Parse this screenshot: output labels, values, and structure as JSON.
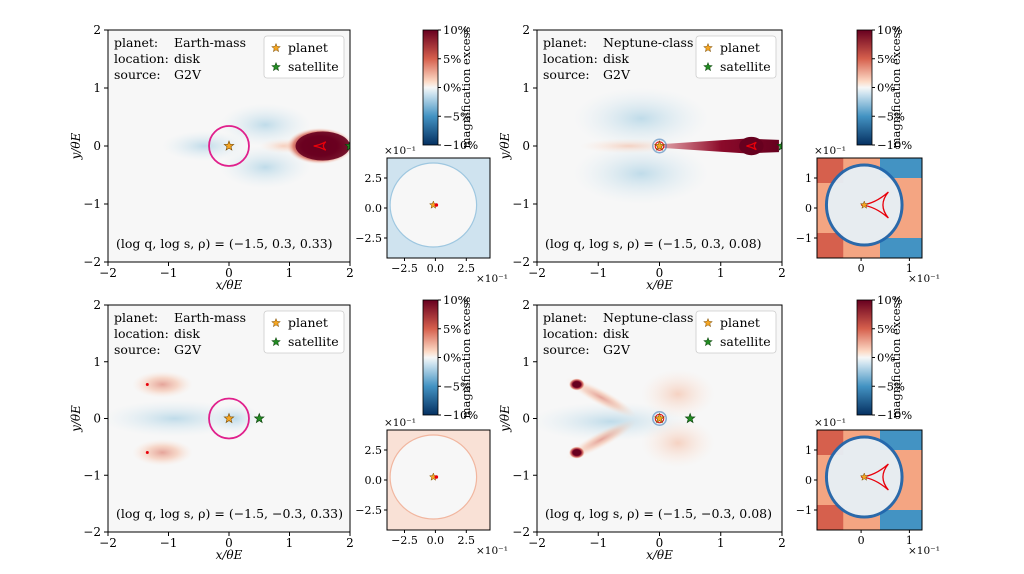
{
  "colors": {
    "excess_high": "#67001f",
    "excess_low": "#053061",
    "neutral": "#f7f7f7",
    "caustic": "#e8000b",
    "circle": "#e0208c",
    "planet_star": "#f5a623",
    "satellite_star": "#228b22"
  },
  "chart_data": [
    {
      "type": "heatmap",
      "panel": "top-left",
      "info": {
        "planet_key": "planet:",
        "planet_val": "Earth-mass",
        "location_key": "location:",
        "location_val": "disk",
        "source_key": "source:",
        "source_val": "G2V"
      },
      "legend": {
        "planet": "planet",
        "satellite": "satellite"
      },
      "param_text": "(log q, log s, ρ) = (−1.5, 0.3, 0.33)",
      "xlabel": "x/θE",
      "ylabel": "y/θE",
      "xlim": [
        -2,
        2
      ],
      "ylim": [
        -2,
        2
      ],
      "xticks": [
        "−2",
        "−1",
        "0",
        "1",
        "2"
      ],
      "yticks": [
        "2",
        "1",
        "0",
        "−1",
        "−2"
      ],
      "planet_xy": [
        0,
        0
      ],
      "satellite_xy": [
        2.0,
        0
      ],
      "excess_regions": [
        {
          "x": 1.5,
          "y": 0,
          "sign": 1,
          "strength": 1.0,
          "shape": "lobe"
        }
      ],
      "magenta_circle": {
        "x": 0,
        "y": 0,
        "r": 0.33
      },
      "colorbar": {
        "label": "magnification excess",
        "ticks": [
          "10%",
          "5%",
          "0%",
          "−5%",
          "−10%"
        ],
        "range": [
          -10,
          10
        ]
      },
      "inset": {
        "scale_label": "×10⁻¹",
        "ticks": [
          "2.5",
          "0.0",
          "−2.5"
        ],
        "xticks": [
          "−2.5",
          "0.0",
          "2.5"
        ],
        "range": [
          -0.4,
          0.4
        ]
      }
    },
    {
      "type": "heatmap",
      "panel": "top-right",
      "info": {
        "planet_key": "planet:",
        "planet_val": "Neptune-class",
        "location_key": "location:",
        "location_val": "disk",
        "source_key": "source:",
        "source_val": "G2V"
      },
      "legend": {
        "planet": "planet",
        "satellite": "satellite"
      },
      "param_text": "(log q, log s, ρ) = (−1.5, 0.3, 0.08)",
      "xlabel": "x/θE",
      "ylabel": "y/θE",
      "xlim": [
        -2,
        2
      ],
      "ylim": [
        -2,
        2
      ],
      "xticks": [
        "−2",
        "−1",
        "0",
        "1",
        "2"
      ],
      "yticks": [
        "2",
        "1",
        "0",
        "−1",
        "−2"
      ],
      "planet_xy": [
        0,
        0
      ],
      "satellite_xy": [
        2.0,
        0
      ],
      "excess_regions": [
        {
          "x": 1.5,
          "y": 0,
          "sign": 1,
          "strength": 1.0,
          "shape": "band"
        }
      ],
      "colorbar": {
        "label": "magnification excess",
        "ticks": [
          "10%",
          "5%",
          "0%",
          "−5%",
          "−10%"
        ],
        "range": [
          -10,
          10
        ]
      },
      "inset": {
        "scale_label": "×10⁻¹",
        "ticks": [
          "1",
          "0",
          "−1"
        ],
        "xticks": [
          "0",
          "1"
        ],
        "range": [
          -1,
          1.2
        ]
      }
    },
    {
      "type": "heatmap",
      "panel": "bottom-left",
      "info": {
        "planet_key": "planet:",
        "planet_val": "Earth-mass",
        "location_key": "location:",
        "location_val": "disk",
        "source_key": "source:",
        "source_val": "G2V"
      },
      "legend": {
        "planet": "planet",
        "satellite": "satellite"
      },
      "param_text": "(log q, log s, ρ) = (−1.5, −0.3, 0.33)",
      "xlabel": "x/θE",
      "ylabel": "y/θE",
      "xlim": [
        -2,
        2
      ],
      "ylim": [
        -2,
        2
      ],
      "xticks": [
        "−2",
        "−1",
        "0",
        "1",
        "2"
      ],
      "yticks": [
        "2",
        "1",
        "0",
        "−1",
        "−2"
      ],
      "planet_xy": [
        0,
        0
      ],
      "satellite_xy": [
        0.5,
        0
      ],
      "excess_regions": [
        {
          "x": -1.35,
          "y": 0.6,
          "sign": 1,
          "strength": 0.4,
          "shape": "blob"
        },
        {
          "x": -1.35,
          "y": -0.6,
          "sign": 1,
          "strength": 0.4,
          "shape": "blob"
        }
      ],
      "magenta_circle": {
        "x": 0,
        "y": 0,
        "r": 0.33
      },
      "colorbar": {
        "label": "magnification excess",
        "ticks": [
          "10%",
          "5%",
          "0%",
          "−5%",
          "−10%"
        ],
        "range": [
          -10,
          10
        ]
      },
      "inset": {
        "scale_label": "×10⁻¹",
        "ticks": [
          "2.5",
          "0.0",
          "−2.5"
        ],
        "xticks": [
          "−2.5",
          "0.0",
          "2.5"
        ],
        "range": [
          -0.4,
          0.4
        ]
      }
    },
    {
      "type": "heatmap",
      "panel": "bottom-right",
      "info": {
        "planet_key": "planet:",
        "planet_val": "Neptune-class",
        "location_key": "location:",
        "location_val": "disk",
        "source_key": "source:",
        "source_val": "G2V"
      },
      "legend": {
        "planet": "planet",
        "satellite": "satellite"
      },
      "param_text": "(log q, log s, ρ) = (−1.5, −0.3, 0.08)",
      "xlabel": "x/θE",
      "ylabel": "y/θE",
      "xlim": [
        -2,
        2
      ],
      "ylim": [
        -2,
        2
      ],
      "xticks": [
        "−2",
        "−1",
        "0",
        "1",
        "2"
      ],
      "yticks": [
        "2",
        "1",
        "0",
        "−1",
        "−2"
      ],
      "planet_xy": [
        0,
        0
      ],
      "satellite_xy": [
        0.5,
        0
      ],
      "excess_regions": [
        {
          "x": -1.35,
          "y": 0.6,
          "sign": 1,
          "strength": 1.0,
          "shape": "blob"
        },
        {
          "x": -1.35,
          "y": -0.6,
          "sign": 1,
          "strength": 1.0,
          "shape": "blob"
        }
      ],
      "colorbar": {
        "label": "magnification excess",
        "ticks": [
          "10%",
          "5%",
          "0%",
          "−5%",
          "−10%"
        ],
        "range": [
          -10,
          10
        ]
      },
      "inset": {
        "scale_label": "×10⁻¹",
        "ticks": [
          "1",
          "0",
          "−1"
        ],
        "xticks": [
          "0",
          "1"
        ],
        "range": [
          -1,
          1.2
        ]
      }
    }
  ]
}
